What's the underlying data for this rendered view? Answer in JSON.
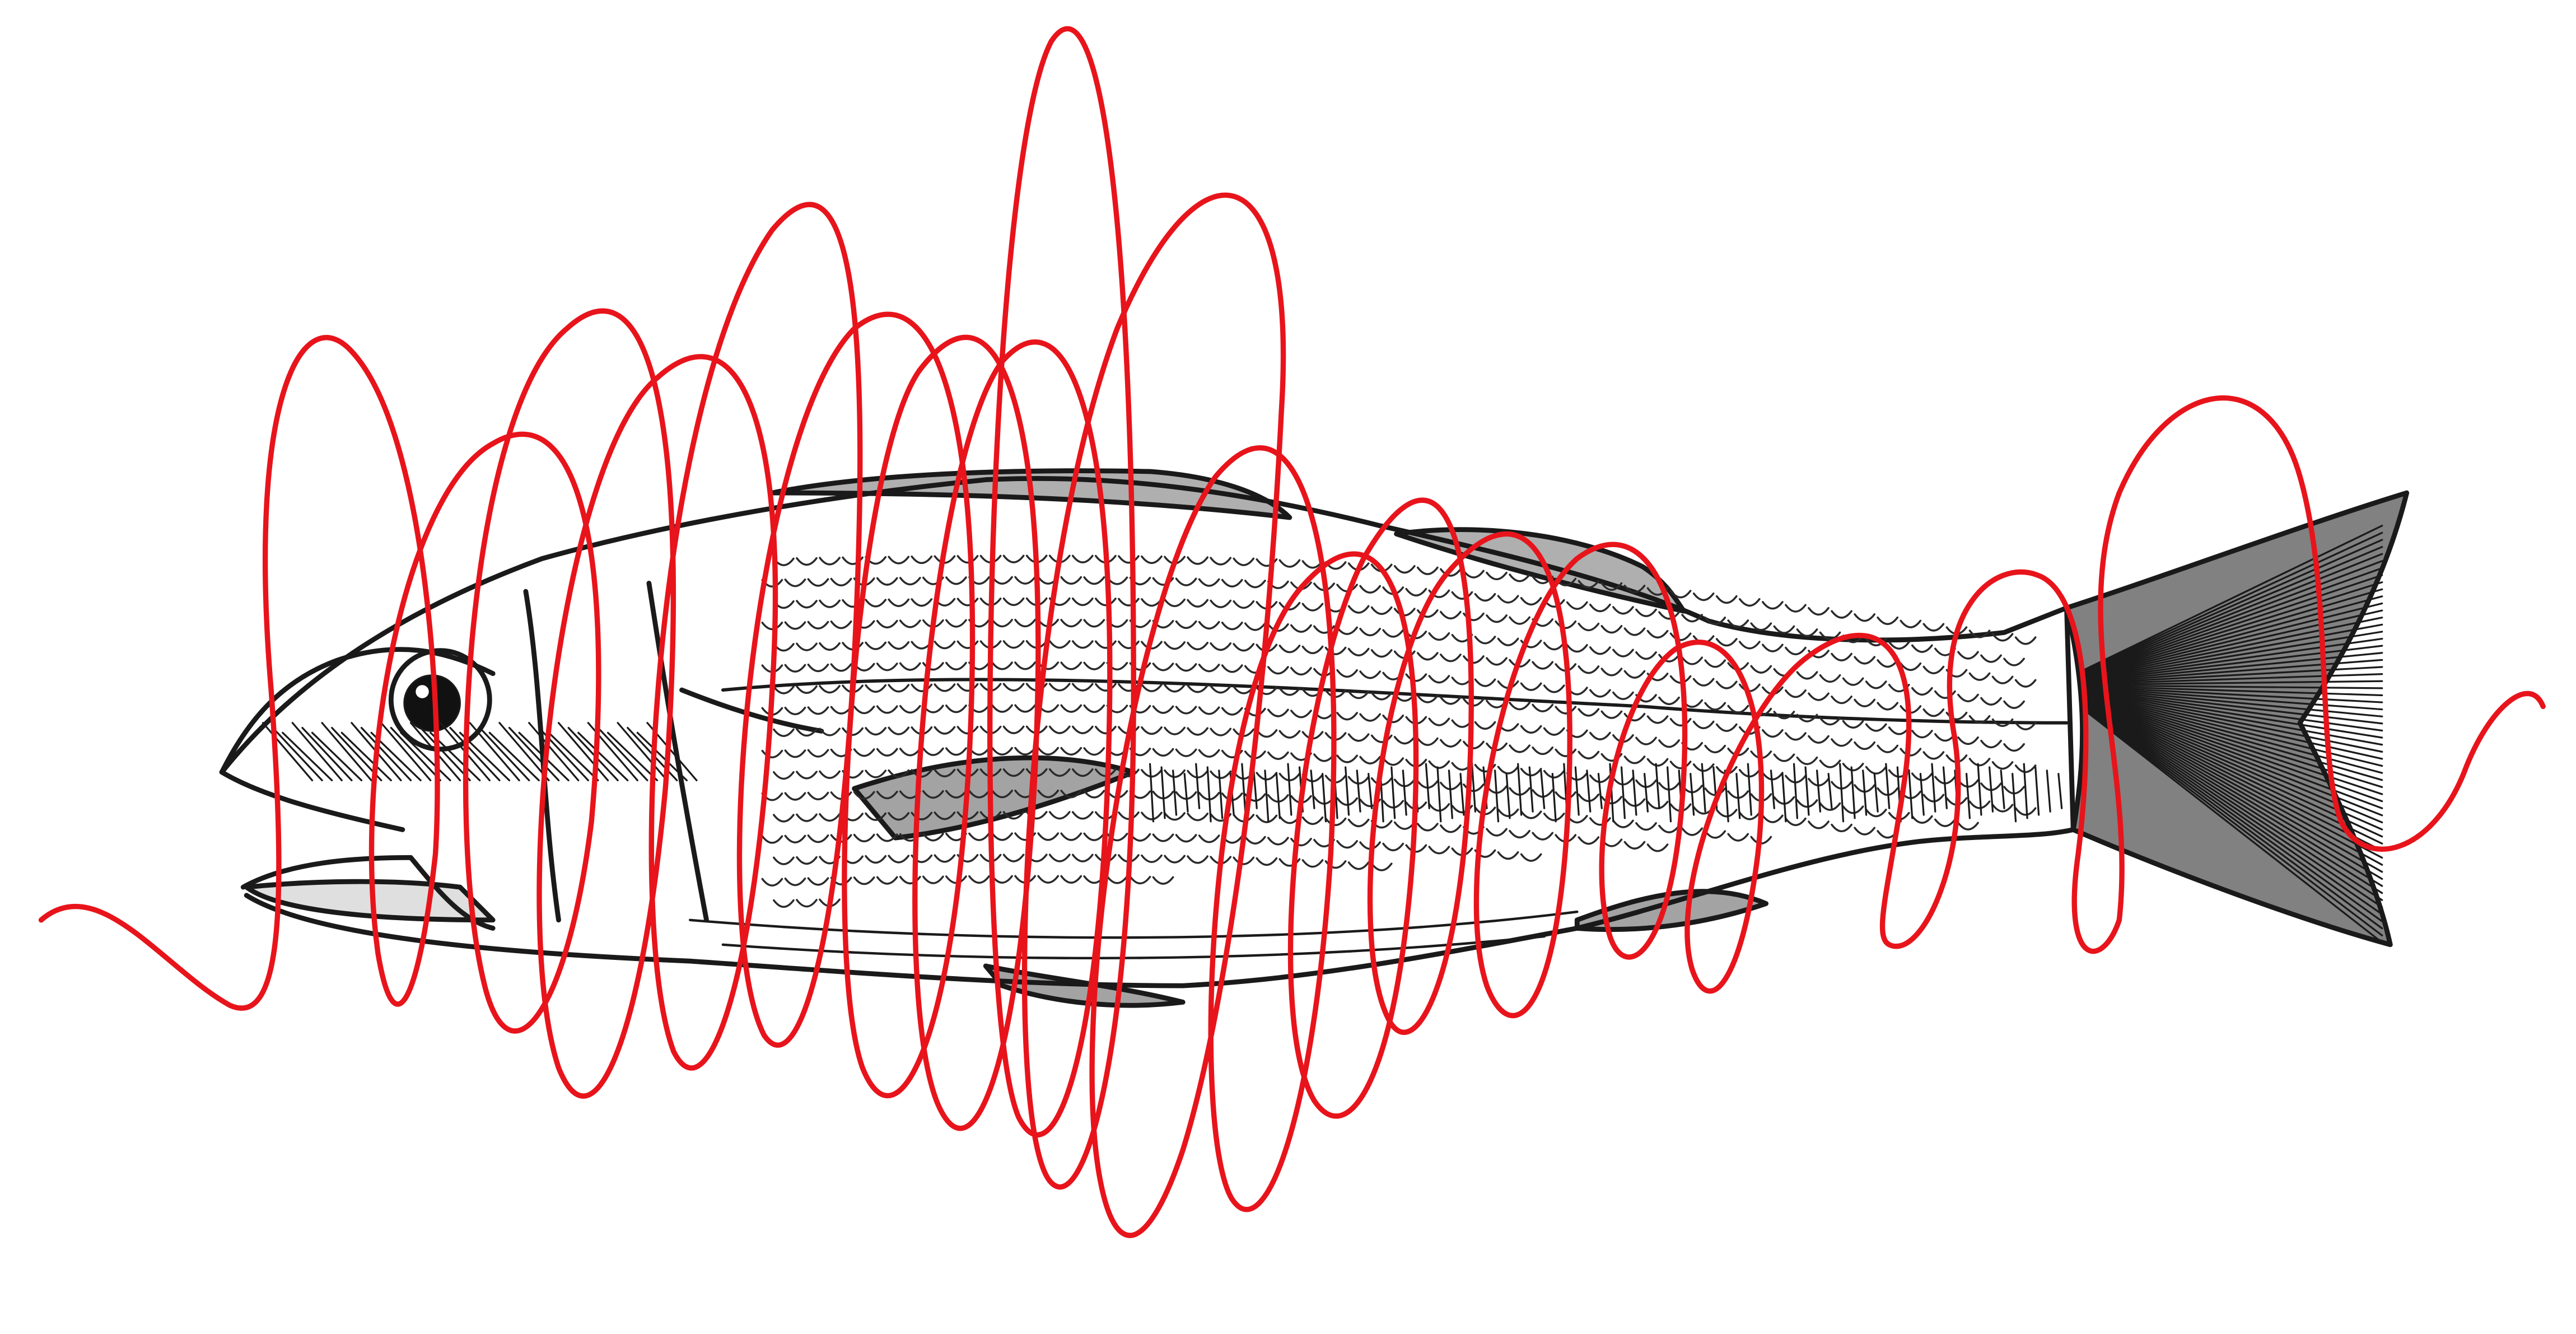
{
  "artwork": {
    "subject_icon": "fish-icon",
    "overlay_icon": "scribble-icon",
    "colors": {
      "background": "#ffffff",
      "ink": "#1a1a1a",
      "scribble": "#e8141b"
    }
  }
}
